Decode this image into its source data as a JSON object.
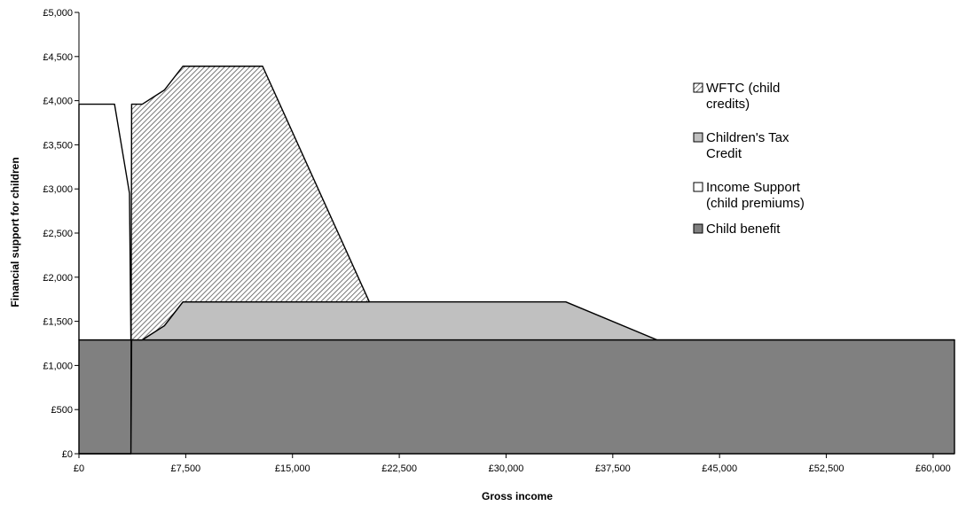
{
  "chart_data": {
    "type": "area",
    "xlabel": "Gross income",
    "ylabel": "Financial support for children",
    "xlim": [
      0,
      61500
    ],
    "ylim": [
      0,
      5000
    ],
    "x_ticks": [
      0,
      7500,
      15000,
      22500,
      30000,
      37500,
      45000,
      52500,
      60000
    ],
    "x_tick_labels": [
      "£0",
      "£7,500",
      "£15,000",
      "£22,500",
      "£30,000",
      "£37,500",
      "£45,000",
      "£52,500",
      "£60,000"
    ],
    "y_ticks": [
      0,
      500,
      1000,
      1500,
      2000,
      2500,
      3000,
      3500,
      4000,
      4500,
      5000
    ],
    "y_tick_labels": [
      "£0",
      "£500",
      "£1,000",
      "£1,500",
      "£2,000",
      "£2,500",
      "£3,000",
      "£3,500",
      "£4,000",
      "£4,500",
      "£5,000"
    ],
    "legend_position": "right",
    "series_stack_order": [
      "Child benefit",
      "Income Support (child premiums)",
      "Children's Tax Credit",
      "WFTC (child credits)"
    ],
    "series": [
      {
        "name": "WFTC (child credits)",
        "fill": "hatched",
        "color": "#d4d4d4",
        "x": [
          0,
          3650,
          3700,
          4450,
          6000,
          7300,
          12900,
          20400
        ],
        "upper": [
          0,
          0,
          3960,
          3960,
          4120,
          4390,
          4390,
          1720
        ],
        "lower": [
          0,
          0,
          1290,
          1290,
          1450,
          1720,
          1720,
          1720
        ]
      },
      {
        "name": "Children's Tax Credit",
        "fill": "solid",
        "color": "#c0c0c0",
        "x": [
          3650,
          4450,
          6000,
          7300,
          34200,
          40600,
          61500
        ],
        "upper": [
          1290,
          1290,
          1450,
          1720,
          1720,
          1290,
          1290
        ],
        "lower": [
          1290,
          1290,
          1290,
          1290,
          1290,
          1290,
          1290
        ]
      },
      {
        "name": "Income Support (child premiums)",
        "fill": "solid",
        "color": "#ffffff",
        "x": [
          0,
          2500,
          3550,
          3650
        ],
        "upper": [
          3960,
          3960,
          2950,
          1290
        ],
        "lower": [
          1290,
          1290,
          1290,
          1290
        ]
      },
      {
        "name": "Child benefit",
        "fill": "solid",
        "color": "#808080",
        "x": [
          0,
          61500
        ],
        "upper": [
          1290,
          1290
        ],
        "lower": [
          0,
          0
        ]
      }
    ],
    "legend": [
      {
        "lines": [
          "WFTC (child",
          "credits)"
        ],
        "fill": "hatched",
        "color": "#d4d4d4"
      },
      {
        "lines": [
          "Children's Tax",
          "Credit"
        ],
        "fill": "solid",
        "color": "#c0c0c0"
      },
      {
        "lines": [
          "Income Support",
          "(child premiums)"
        ],
        "fill": "solid",
        "color": "#ffffff"
      },
      {
        "lines": [
          "Child benefit"
        ],
        "fill": "solid",
        "color": "#808080"
      }
    ]
  }
}
